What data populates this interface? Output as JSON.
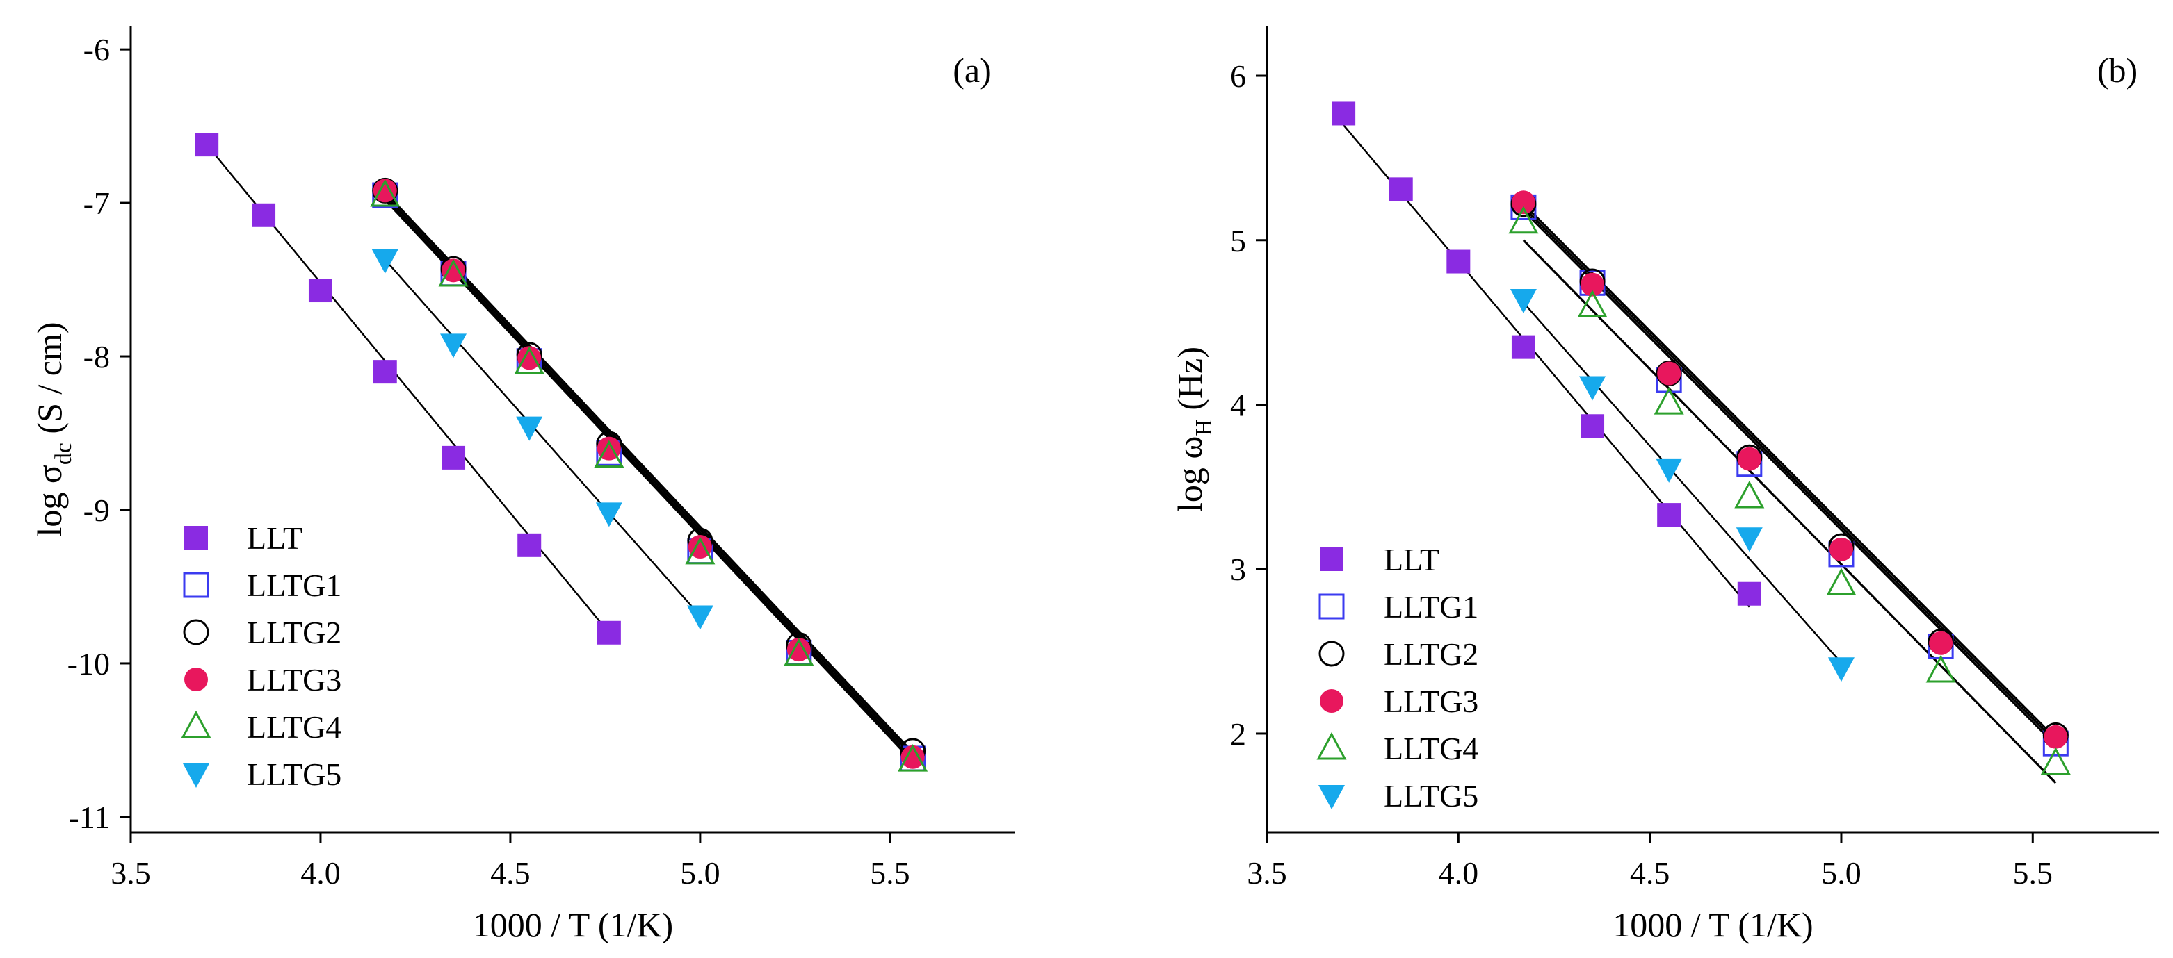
{
  "colors": {
    "LLT": "#8a2be2",
    "LLTG1": "#3b3bf0",
    "LLTG2": "#000000",
    "LLTG3": "#e8175d",
    "LLTG4": "#2ca02c",
    "LLTG5": "#16a9ec",
    "fit": "#000000"
  },
  "chart_data": [
    {
      "type": "scatter",
      "panel_label": "(a)",
      "xlabel": "1000 / T (1/K)",
      "ylabel": {
        "prefix": "log σ",
        "sub": "dc",
        "suffix": " (S / cm)"
      },
      "xlim": [
        3.5,
        5.83
      ],
      "ylim": [
        -11.1,
        -5.85
      ],
      "xticks": [
        "3.5",
        "4.0",
        "4.5",
        "5.0",
        "5.5"
      ],
      "yticks": [
        "-6",
        "-7",
        "-8",
        "-9",
        "-10",
        "-11"
      ],
      "legend_position": "bottom-left",
      "series": [
        {
          "name": "LLT",
          "marker": "square-filled",
          "x": [
            3.7,
            3.85,
            4.0,
            4.17,
            4.35,
            4.55,
            4.76
          ],
          "y": [
            -6.62,
            -7.08,
            -7.57,
            -8.1,
            -8.66,
            -9.23,
            -9.8
          ],
          "fit": [
            [
              3.7,
              -6.62
            ],
            [
              4.76,
              -9.8
            ]
          ]
        },
        {
          "name": "LLTG1",
          "marker": "square-open",
          "x": [
            4.17,
            4.35,
            4.55,
            4.76,
            5.0,
            5.26,
            5.56
          ],
          "y": [
            -6.95,
            -7.46,
            -8.03,
            -8.63,
            -9.27,
            -9.93,
            -10.62
          ],
          "fit": [
            [
              4.17,
              -6.97
            ],
            [
              5.56,
              -10.62
            ]
          ]
        },
        {
          "name": "LLTG2",
          "marker": "circle-open",
          "x": [
            4.17,
            4.35,
            4.55,
            4.76,
            5.0,
            5.26,
            5.56
          ],
          "y": [
            -6.92,
            -7.43,
            -7.99,
            -8.57,
            -9.2,
            -9.88,
            -10.57
          ],
          "fit": [
            [
              4.17,
              -6.93
            ],
            [
              5.56,
              -10.58
            ]
          ]
        },
        {
          "name": "LLTG3",
          "marker": "circle-filled",
          "x": [
            4.17,
            4.35,
            4.55,
            4.76,
            5.0,
            5.26,
            5.56
          ],
          "y": [
            -6.92,
            -7.44,
            -8.01,
            -8.6,
            -9.24,
            -9.91,
            -10.61
          ],
          "fit": [
            [
              4.17,
              -6.95
            ],
            [
              5.56,
              -10.6
            ]
          ]
        },
        {
          "name": "LLTG4",
          "marker": "triangle-up-open",
          "x": [
            4.17,
            4.35,
            4.55,
            4.76,
            5.0,
            5.26,
            5.56
          ],
          "y": [
            -6.95,
            -7.47,
            -8.04,
            -8.65,
            -9.28,
            -9.94,
            -10.63
          ],
          "fit": [
            [
              4.17,
              -6.98
            ],
            [
              5.56,
              -10.64
            ]
          ]
        },
        {
          "name": "LLTG5",
          "marker": "triangle-down-filled",
          "x": [
            4.17,
            4.35,
            4.55,
            4.76,
            5.0
          ],
          "y": [
            -7.37,
            -7.92,
            -8.46,
            -9.02,
            -9.69
          ],
          "fit": [
            [
              4.17,
              -7.37
            ],
            [
              5.0,
              -9.69
            ]
          ]
        }
      ]
    },
    {
      "type": "scatter",
      "panel_label": "(b)",
      "xlabel": "1000 / T (1/K)",
      "ylabel": {
        "prefix": "log ω",
        "sub": "H",
        "suffix": " (Hz)"
      },
      "xlim": [
        3.5,
        5.83
      ],
      "ylim": [
        1.4,
        6.3
      ],
      "xticks": [
        "3.5",
        "4.0",
        "4.5",
        "5.0",
        "5.5"
      ],
      "yticks": [
        "2",
        "3",
        "4",
        "5",
        "6"
      ],
      "legend_position": "bottom-left",
      "series": [
        {
          "name": "LLT",
          "marker": "square-filled",
          "x": [
            3.7,
            3.85,
            4.0,
            4.17,
            4.35,
            4.55,
            4.76
          ],
          "y": [
            5.77,
            5.31,
            4.87,
            4.35,
            3.87,
            3.33,
            2.85
          ],
          "fit": [
            [
              3.7,
              5.7
            ],
            [
              4.76,
              2.77
            ]
          ]
        },
        {
          "name": "LLTG1",
          "marker": "square-open",
          "x": [
            4.17,
            4.35,
            4.55,
            4.76,
            5.0,
            5.26,
            5.56
          ],
          "y": [
            5.2,
            4.74,
            4.15,
            3.64,
            3.09,
            2.53,
            1.94
          ],
          "fit": [
            [
              4.17,
              5.18
            ],
            [
              5.56,
              1.93
            ]
          ]
        },
        {
          "name": "LLTG2",
          "marker": "circle-open",
          "x": [
            4.17,
            4.35,
            4.55,
            4.76,
            5.0,
            5.26,
            5.56
          ],
          "y": [
            5.22,
            4.75,
            4.19,
            3.68,
            3.14,
            2.56,
            1.99
          ],
          "fit": [
            [
              4.17,
              5.22
            ],
            [
              5.56,
              1.97
            ]
          ]
        },
        {
          "name": "LLTG3",
          "marker": "circle-filled",
          "x": [
            4.17,
            4.35,
            4.55,
            4.76,
            5.0,
            5.26,
            5.56
          ],
          "y": [
            5.23,
            4.73,
            4.19,
            3.67,
            3.12,
            2.55,
            1.98
          ],
          "fit": [
            [
              4.17,
              5.2
            ],
            [
              5.56,
              1.95
            ]
          ]
        },
        {
          "name": "LLTG4",
          "marker": "triangle-up-open",
          "x": [
            4.17,
            4.35,
            4.55,
            4.76,
            5.0,
            5.26,
            5.56
          ],
          "y": [
            5.11,
            4.6,
            4.01,
            3.44,
            2.91,
            2.38,
            1.82
          ],
          "fit": [
            [
              4.17,
              5.0
            ],
            [
              5.56,
              1.7
            ]
          ]
        },
        {
          "name": "LLTG5",
          "marker": "triangle-down-filled",
          "x": [
            4.17,
            4.35,
            4.55,
            4.76,
            5.0
          ],
          "y": [
            4.64,
            4.11,
            3.61,
            3.19,
            2.4
          ],
          "fit": [
            [
              4.17,
              4.62
            ],
            [
              5.0,
              2.43
            ]
          ]
        }
      ]
    }
  ]
}
